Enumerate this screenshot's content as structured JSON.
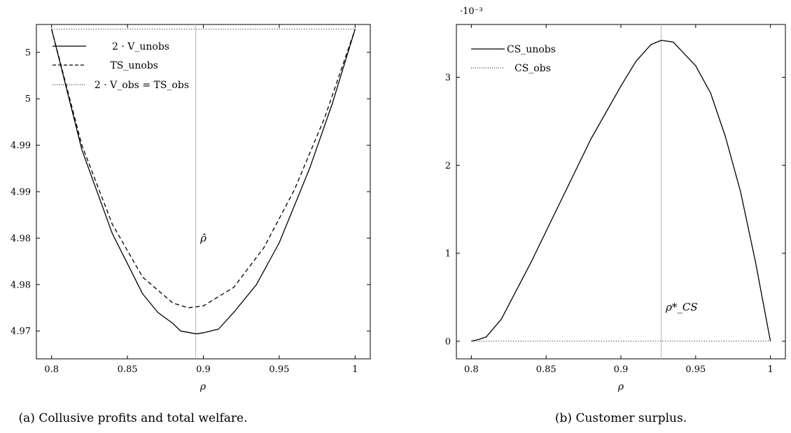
{
  "charts": [
    {
      "id": "a",
      "caption": "(a) Collusive profits and total welfare.",
      "xlabel": "ρ",
      "vline_label": "ρ̂",
      "chart_data": {
        "type": "line",
        "xlim": [
          0.79,
          1.01
        ],
        "ylim": [
          4.9645,
          5.0005
        ],
        "xticks": [
          0.8,
          0.85,
          0.9,
          0.95,
          1
        ],
        "xtick_labels": [
          "0.8",
          "0.85",
          "0.9",
          "0.95",
          "1"
        ],
        "yticks": [
          4.9675,
          4.9725,
          4.9775,
          4.9825,
          4.9875,
          4.9925,
          4.9975
        ],
        "ytick_labels": [
          "4.97",
          "4.98",
          "4.98",
          "4.99",
          "4.99",
          "5",
          "5"
        ],
        "vline_x": 0.895,
        "annotation_at": [
          0.898,
          4.9771
        ],
        "legend_position": "top-left",
        "grid": false,
        "series": [
          {
            "name": "2 · V_unobs",
            "style": "solid",
            "x": [
              0.8,
              0.82,
              0.84,
              0.86,
              0.87,
              0.88,
              0.885,
              0.895,
              0.9,
              0.91,
              0.92,
              0.935,
              0.95,
              0.97,
              0.985,
              1.0
            ],
            "y": [
              5.0,
              4.987,
              4.978,
              4.9715,
              4.9695,
              4.9683,
              4.9675,
              4.9672,
              4.9673,
              4.9677,
              4.9695,
              4.9725,
              4.977,
              4.985,
              4.992,
              5.0
            ]
          },
          {
            "name": "TS_unobs",
            "style": "dashed",
            "x": [
              0.8,
              0.82,
              0.84,
              0.86,
              0.88,
              0.89,
              0.9,
              0.92,
              0.94,
              0.96,
              0.98,
              1.0
            ],
            "y": [
              5.0,
              4.9875,
              4.979,
              4.9733,
              4.9705,
              4.97,
              4.9702,
              4.9722,
              4.9765,
              4.9827,
              4.9905,
              5.0
            ]
          },
          {
            "name": "2 · V_obs = TS_obs",
            "style": "dotted",
            "x": [
              0.8,
              1.0
            ],
            "y": [
              5.0,
              5.0
            ]
          }
        ]
      }
    },
    {
      "id": "b",
      "caption": "(b) Customer surplus.",
      "xlabel": "ρ",
      "vline_label": "ρ*_CS",
      "chart_data": {
        "type": "line",
        "xlim": [
          0.79,
          1.01
        ],
        "ylim": [
          -0.0002,
          0.0036
        ],
        "yscale_label": "·10⁻³",
        "xticks": [
          0.8,
          0.85,
          0.9,
          0.95,
          1
        ],
        "xtick_labels": [
          "0.8",
          "0.85",
          "0.9",
          "0.95",
          "1"
        ],
        "yticks": [
          0,
          0.001,
          0.002,
          0.003
        ],
        "ytick_labels": [
          "0",
          "1",
          "2",
          "3"
        ],
        "vline_x": 0.927,
        "annotation_at": [
          0.93,
          0.00035
        ],
        "legend_position": "top-left",
        "grid": false,
        "series": [
          {
            "name": "CS_unobs",
            "style": "solid",
            "x": [
              0.8,
              0.805,
              0.81,
              0.82,
              0.84,
              0.86,
              0.88,
              0.9,
              0.91,
              0.92,
              0.927,
              0.935,
              0.95,
              0.96,
              0.97,
              0.98,
              0.99,
              1.0
            ],
            "y": [
              0.0,
              2e-05,
              5e-05,
              0.00025,
              0.0009,
              0.0016,
              0.0023,
              0.0029,
              0.00318,
              0.00337,
              0.00342,
              0.0034,
              0.00313,
              0.00282,
              0.00232,
              0.0017,
              0.0009,
              0.0
            ]
          },
          {
            "name": "CS_obs",
            "style": "dotted",
            "x": [
              0.8,
              1.0
            ],
            "y": [
              0.0,
              0.0
            ]
          }
        ]
      }
    }
  ]
}
